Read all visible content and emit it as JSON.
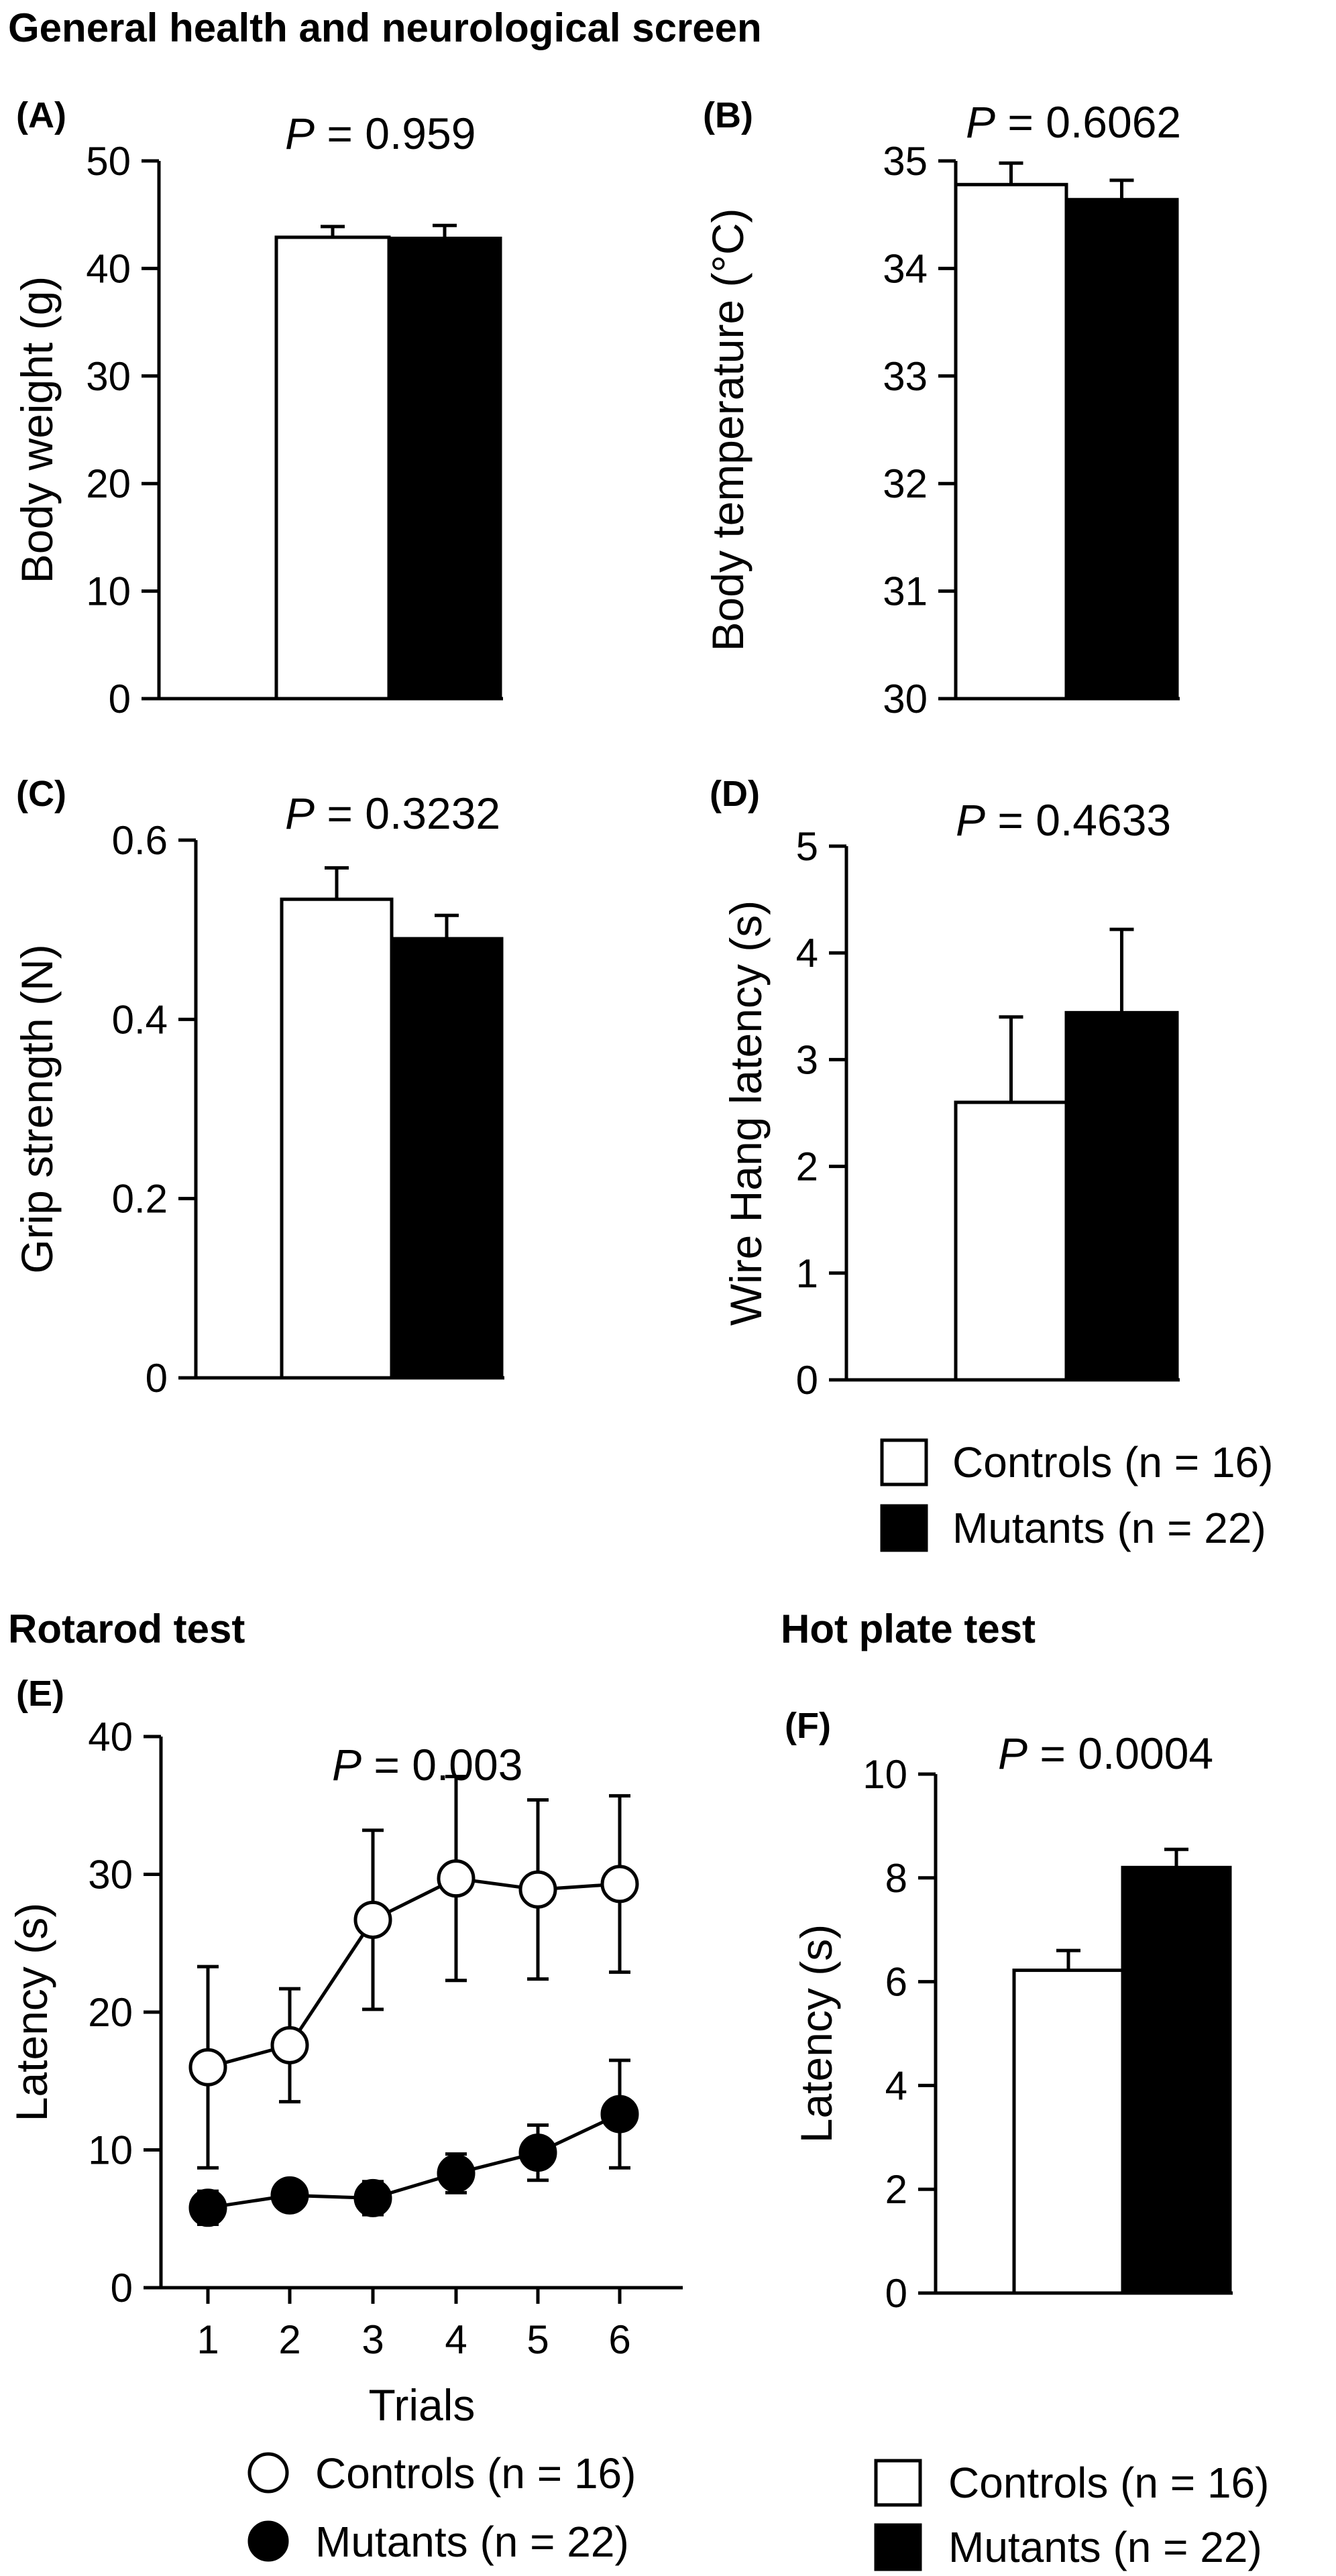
{
  "sections": {
    "general": "General health and neurological screen",
    "rotarod": "Rotarod test",
    "hotplate": "Hot plate test"
  },
  "legend_bars": {
    "controls": "Controls (n = 16)",
    "mutants": "Mutants (n = 22)"
  },
  "legend_points": {
    "controls": "Controls (n = 16)",
    "mutants": "Mutants (n = 22)"
  },
  "colors": {
    "controls_fill": "#ffffff",
    "mutants_fill": "#000000",
    "stroke": "#000000"
  },
  "chart_data": [
    {
      "id": "A",
      "panel": "(A)",
      "type": "bar",
      "p_label": "P",
      "p_value": "= 0.959",
      "ylabel": "Body weight (g)",
      "ylim": [
        0,
        50
      ],
      "yticks": [
        0,
        10,
        20,
        30,
        40,
        50
      ],
      "tick_labels": [
        "0",
        "10",
        "20",
        "30",
        "40",
        "50"
      ],
      "categories": [
        "Controls (n = 16)",
        "Mutants (n = 22)"
      ],
      "values": [
        42.9,
        42.8
      ],
      "errors": [
        1.0,
        1.2
      ]
    },
    {
      "id": "B",
      "panel": "(B)",
      "type": "bar",
      "p_label": "P",
      "p_value": "= 0.6062",
      "ylabel": "Body temperature (°C)",
      "ylim": [
        30,
        35
      ],
      "yticks": [
        30,
        31,
        32,
        33,
        34,
        35
      ],
      "tick_labels": [
        "30",
        "31",
        "32",
        "33",
        "34",
        "35"
      ],
      "categories": [
        "Controls (n = 16)",
        "Mutants (n = 22)"
      ],
      "values": [
        34.78,
        34.64
      ],
      "errors": [
        0.2,
        0.18
      ]
    },
    {
      "id": "C",
      "panel": "(C)",
      "type": "bar",
      "p_label": "P",
      "p_value": "= 0.3232",
      "ylabel": "Grip strength (N)",
      "ylim": [
        0,
        0.6
      ],
      "yticks": [
        0,
        0.2,
        0.4,
        0.6
      ],
      "tick_labels": [
        "0",
        "0.2",
        "0.4",
        "0.6"
      ],
      "categories": [
        "Controls (n = 16)",
        "Mutants (n = 22)"
      ],
      "values": [
        0.534,
        0.49
      ],
      "errors": [
        0.035,
        0.026
      ]
    },
    {
      "id": "D",
      "panel": "(D)",
      "type": "bar",
      "p_label": "P",
      "p_value": "= 0.4633",
      "ylabel": "Wire Hang latency (s)",
      "ylim": [
        0,
        5
      ],
      "yticks": [
        0,
        1,
        2,
        3,
        4,
        5
      ],
      "tick_labels": [
        "0",
        "1",
        "2",
        "3",
        "4",
        "5"
      ],
      "categories": [
        "Controls (n = 16)",
        "Mutants (n = 22)"
      ],
      "values": [
        2.6,
        3.44
      ],
      "errors": [
        0.8,
        0.78
      ]
    },
    {
      "id": "E",
      "panel": "(E)",
      "type": "line",
      "p_label": "P",
      "p_value": "= 0.003",
      "ylabel": "Latency (s)",
      "xlabel": "Trials",
      "ylim": [
        0,
        40
      ],
      "yticks": [
        0,
        10,
        20,
        30,
        40
      ],
      "tick_labels": [
        "0",
        "10",
        "20",
        "30",
        "40"
      ],
      "x": [
        1,
        2,
        3,
        4,
        5,
        6
      ],
      "x_tick_labels": [
        "1",
        "2",
        "3",
        "4",
        "5",
        "6"
      ],
      "series": [
        {
          "name": "Controls (n = 16)",
          "values": [
            16.0,
            17.6,
            26.7,
            29.7,
            28.9,
            29.3
          ],
          "errors": [
            7.3,
            4.1,
            6.5,
            7.4,
            6.5,
            6.4
          ]
        },
        {
          "name": "Mutants (n = 22)",
          "values": [
            5.8,
            6.7,
            6.5,
            8.3,
            9.8,
            12.6
          ],
          "errors": [
            1.2,
            0.8,
            1.2,
            1.4,
            2.0,
            3.9
          ]
        }
      ]
    },
    {
      "id": "F",
      "panel": "(F)",
      "type": "bar",
      "p_label": "P",
      "p_value": "= 0.0004",
      "ylabel": "Latency (s)",
      "ylim": [
        0,
        10
      ],
      "yticks": [
        0,
        2,
        4,
        6,
        8,
        10
      ],
      "tick_labels": [
        "0",
        "2",
        "4",
        "6",
        "8",
        "10"
      ],
      "categories": [
        "Controls (n = 16)",
        "Mutants (n = 22)"
      ],
      "values": [
        6.22,
        8.2
      ],
      "errors": [
        0.38,
        0.35
      ]
    }
  ]
}
